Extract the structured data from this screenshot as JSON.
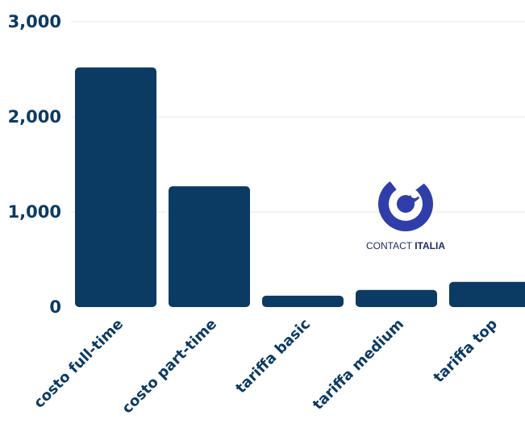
{
  "chart_data": {
    "type": "bar",
    "title": "",
    "xlabel": "",
    "ylabel": "",
    "categories": [
      "costo full-time",
      "costo part-time",
      "tariffa basic",
      "tariffa medium",
      "tariffa top"
    ],
    "values": [
      2520,
      1270,
      120,
      180,
      265
    ],
    "ylim": [
      0,
      3000
    ],
    "yticks": [
      0,
      1000,
      2000,
      3000
    ],
    "ytick_labels": [
      "0",
      "1,000",
      "2,000",
      "3,000"
    ],
    "grid": true,
    "bar_color": "#0b3a63",
    "grid_color": "#e5e8ec"
  },
  "logo": {
    "text_light": "CONTACT",
    "text_bold": "ITALIA",
    "color": "#2f3ea8"
  }
}
